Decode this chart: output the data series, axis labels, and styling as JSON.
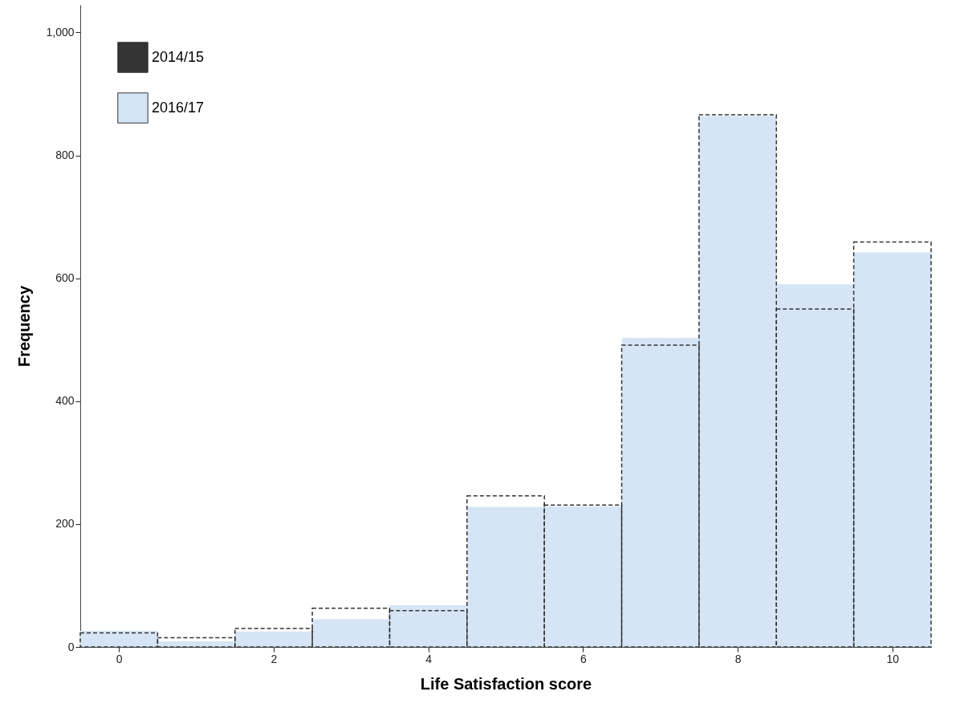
{
  "chart_data": {
    "type": "histogram",
    "xlabel": "Life Satisfaction score",
    "ylabel": "Frequency",
    "bins": [
      -0.5,
      0.5,
      1.5,
      2.5,
      3.5,
      4.5,
      5.5,
      6.5,
      7.5,
      8.5,
      9.5,
      10.5
    ],
    "series": [
      {
        "name": "2014/15",
        "color": "#333333",
        "line_style": "dashed",
        "values": [
          23,
          15,
          30,
          63,
          59,
          246,
          231,
          491,
          866,
          550,
          659
        ]
      },
      {
        "name": "2016/17",
        "color": "#d5e5f5",
        "values": [
          26,
          9,
          25,
          45,
          68,
          228,
          229,
          503,
          864,
          590,
          642
        ]
      }
    ],
    "xlim": [
      -0.5,
      10.5
    ],
    "xticks": [
      0,
      2,
      4,
      6,
      8,
      10
    ],
    "ylim": [
      0,
      1045
    ],
    "yticks": [
      0,
      200,
      400,
      600,
      800,
      {
        "value": 1000,
        "label": "1,000"
      }
    ],
    "grid": false,
    "legend": "top left"
  }
}
